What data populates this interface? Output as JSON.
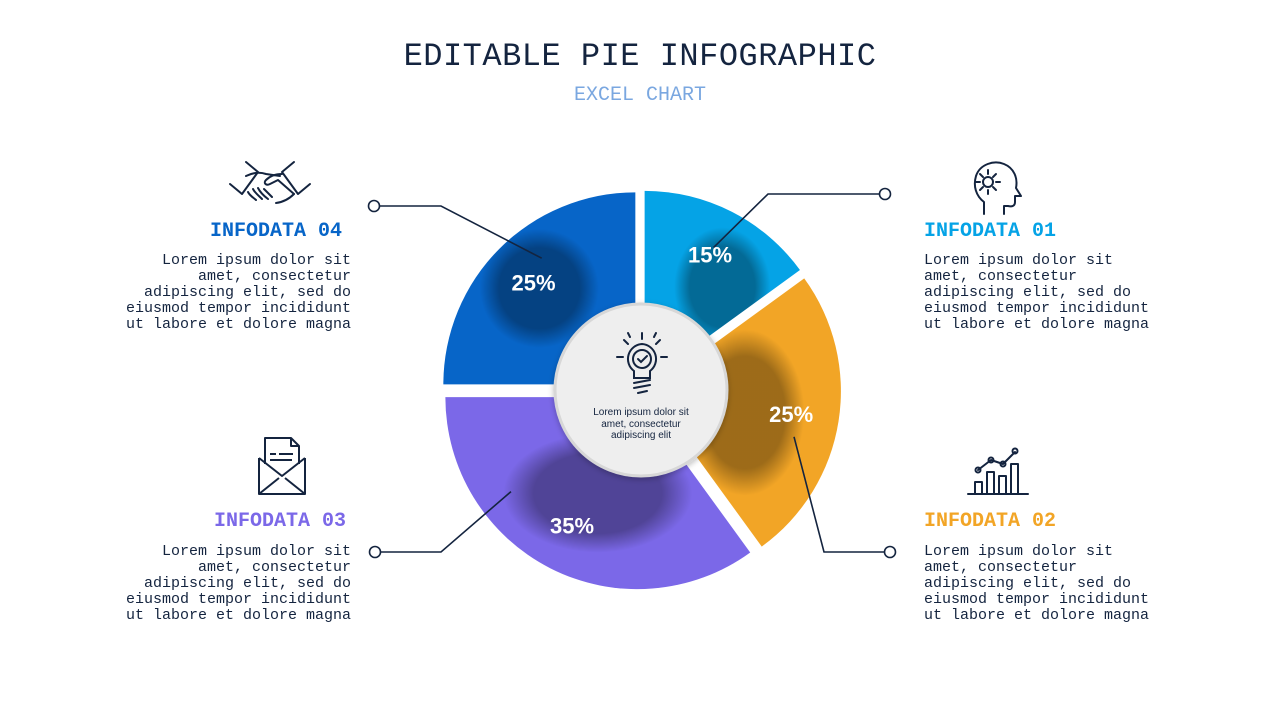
{
  "title": "EDITABLE PIE INFOGRAPHIC",
  "subtitle": "EXCEL CHART",
  "center_text": "Lorem ipsum dolor sit\namet, consectetur\nadipiscing elit",
  "items": [
    {
      "heading": "INFODATA 01",
      "color": "#05a3e6",
      "icon": "head-gear-icon",
      "text": "Lorem ipsum dolor sit\namet, consectetur\nadipiscing elit, sed do\neiusmod tempor incididunt\nut labore et dolore magna"
    },
    {
      "heading": "INFODATA 02",
      "color": "#f2a526",
      "icon": "bar-chart-icon",
      "text": "Lorem ipsum dolor sit\namet, consectetur\nadipiscing elit, sed do\neiusmod tempor incididunt\nut labore et dolore magna"
    },
    {
      "heading": "INFODATA 03",
      "color": "#7b68e8",
      "icon": "envelope-letter-icon",
      "text": "Lorem ipsum dolor sit\namet, consectetur\nadipiscing elit, sed do\neiusmod tempor incididunt\nut labore et dolore magna"
    },
    {
      "heading": "INFODATA 04",
      "color": "#0765c8",
      "icon": "handshake-icon",
      "text": "Lorem ipsum dolor sit\namet, consectetur\nadipiscing elit, sed do\neiusmod tempor incididunt\nut labore et dolore magna"
    }
  ],
  "chart_data": {
    "type": "pie",
    "categories": [
      "INFODATA 01",
      "INFODATA 02",
      "INFODATA 03",
      "INFODATA 04"
    ],
    "values": [
      15,
      25,
      35,
      25
    ],
    "labels": [
      "15%",
      "25%",
      "35%",
      "25%"
    ],
    "colors": [
      "#05a3e6",
      "#f2a526",
      "#7b68e8",
      "#0765c8"
    ]
  }
}
